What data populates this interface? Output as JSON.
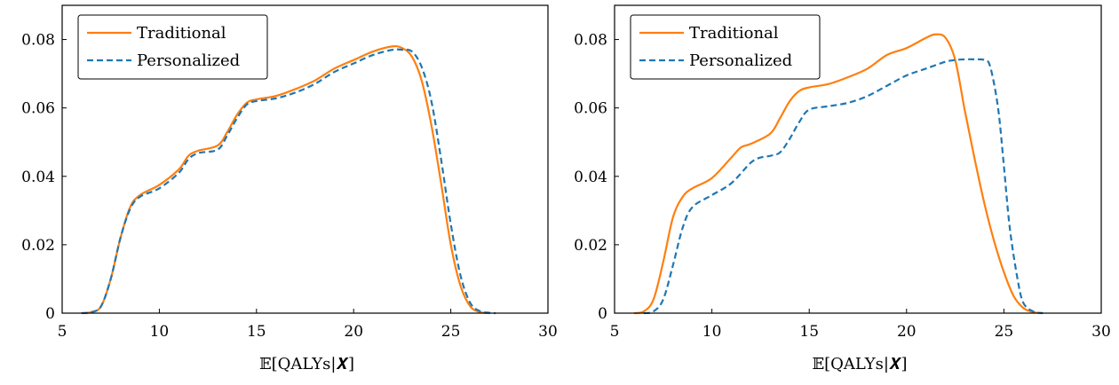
{
  "chart_data": [
    {
      "type": "line",
      "title": "",
      "xlabel": "𝔼[QALYs|𝑿]",
      "ylabel": "",
      "xlim": [
        5,
        30
      ],
      "ylim": [
        0,
        0.09
      ],
      "x_ticks": [
        5,
        10,
        15,
        20,
        25,
        30
      ],
      "x_tick_labels": [
        "5",
        "10",
        "15",
        "20",
        "25",
        "30"
      ],
      "y_ticks": [
        0,
        0.02,
        0.04,
        0.06,
        0.08
      ],
      "y_tick_labels": [
        "0",
        "0.02",
        "0.04",
        "0.06",
        "0.08"
      ],
      "grid": false,
      "legend_position": "top-left",
      "series": [
        {
          "name": "Traditional",
          "color": "#ff7f0e",
          "dash": "solid",
          "x": [
            6.0,
            6.5,
            7.0,
            7.5,
            8.0,
            8.5,
            9.0,
            10.0,
            11.0,
            11.5,
            12.0,
            13.0,
            13.5,
            14.0,
            14.5,
            15.0,
            16.0,
            17.0,
            18.0,
            19.0,
            20.0,
            21.0,
            22.0,
            22.5,
            23.0,
            23.5,
            24.0,
            24.5,
            25.0,
            25.5,
            26.0,
            26.5,
            27.0
          ],
          "y": [
            0.0,
            0.0003,
            0.002,
            0.01,
            0.022,
            0.031,
            0.0345,
            0.0375,
            0.042,
            0.046,
            0.0475,
            0.049,
            0.053,
            0.058,
            0.0615,
            0.0625,
            0.0635,
            0.0655,
            0.068,
            0.0715,
            0.074,
            0.0765,
            0.078,
            0.0775,
            0.075,
            0.068,
            0.055,
            0.038,
            0.02,
            0.008,
            0.002,
            0.0003,
            0.0
          ]
        },
        {
          "name": "Personalized",
          "color": "#1f77b4",
          "dash": "dashed",
          "x": [
            6.0,
            6.5,
            7.0,
            7.5,
            8.0,
            8.5,
            9.0,
            10.0,
            11.0,
            11.5,
            12.0,
            13.0,
            13.5,
            14.0,
            14.5,
            15.0,
            16.0,
            17.0,
            18.0,
            19.0,
            20.0,
            21.0,
            22.0,
            22.5,
            23.0,
            23.5,
            24.0,
            24.5,
            25.0,
            25.5,
            26.0,
            26.5,
            27.0,
            27.3
          ],
          "y": [
            0.0,
            0.0003,
            0.002,
            0.01,
            0.022,
            0.0305,
            0.034,
            0.0365,
            0.041,
            0.045,
            0.0468,
            0.0478,
            0.052,
            0.057,
            0.061,
            0.062,
            0.0628,
            0.0645,
            0.067,
            0.0705,
            0.073,
            0.0755,
            0.077,
            0.077,
            0.0765,
            0.072,
            0.062,
            0.045,
            0.026,
            0.011,
            0.003,
            0.0006,
            0.0001,
            0.0
          ]
        }
      ]
    },
    {
      "type": "line",
      "title": "",
      "xlabel": "𝔼[QALYs|𝑿]",
      "ylabel": "",
      "xlim": [
        5,
        30
      ],
      "ylim": [
        0,
        0.09
      ],
      "x_ticks": [
        5,
        10,
        15,
        20,
        25,
        30
      ],
      "x_tick_labels": [
        "5",
        "10",
        "15",
        "20",
        "25",
        "30"
      ],
      "y_ticks": [
        0,
        0.02,
        0.04,
        0.06,
        0.08
      ],
      "y_tick_labels": [
        "0",
        "0.02",
        "0.04",
        "0.06",
        "0.08"
      ],
      "grid": false,
      "legend_position": "top-left",
      "series": [
        {
          "name": "Traditional",
          "color": "#ff7f0e",
          "dash": "solid",
          "x": [
            6.0,
            6.5,
            7.0,
            7.5,
            8.0,
            8.5,
            9.0,
            10.0,
            11.0,
            11.5,
            12.0,
            13.0,
            13.5,
            14.0,
            14.5,
            15.0,
            16.0,
            17.0,
            18.0,
            19.0,
            20.0,
            21.0,
            21.5,
            22.0,
            22.5,
            23.0,
            23.5,
            24.0,
            24.5,
            25.0,
            25.5,
            26.0,
            26.5,
            27.0
          ],
          "y": [
            0.0,
            0.0005,
            0.004,
            0.015,
            0.028,
            0.034,
            0.0365,
            0.0395,
            0.0455,
            0.0485,
            0.0495,
            0.0525,
            0.057,
            0.062,
            0.065,
            0.066,
            0.067,
            0.069,
            0.0715,
            0.0755,
            0.0775,
            0.0805,
            0.0815,
            0.0805,
            0.074,
            0.059,
            0.045,
            0.032,
            0.021,
            0.012,
            0.005,
            0.0015,
            0.0003,
            0.0
          ]
        },
        {
          "name": "Personalized",
          "color": "#1f77b4",
          "dash": "dashed",
          "x": [
            6.5,
            7.0,
            7.5,
            8.0,
            8.5,
            9.0,
            10.0,
            11.0,
            12.0,
            12.5,
            13.0,
            13.5,
            14.0,
            14.5,
            15.0,
            16.0,
            17.0,
            18.0,
            19.0,
            20.0,
            21.0,
            22.0,
            22.5,
            23.0,
            23.5,
            24.0,
            24.3,
            24.7,
            25.0,
            25.3,
            25.7,
            26.0,
            26.5,
            27.0
          ],
          "y": [
            0.0,
            0.0005,
            0.004,
            0.014,
            0.025,
            0.031,
            0.0345,
            0.038,
            0.044,
            0.0455,
            0.046,
            0.047,
            0.051,
            0.056,
            0.0595,
            0.0605,
            0.0615,
            0.0635,
            0.0665,
            0.0695,
            0.0715,
            0.0735,
            0.074,
            0.0742,
            0.0742,
            0.074,
            0.072,
            0.06,
            0.043,
            0.025,
            0.01,
            0.003,
            0.0005,
            0.0
          ]
        }
      ]
    }
  ]
}
